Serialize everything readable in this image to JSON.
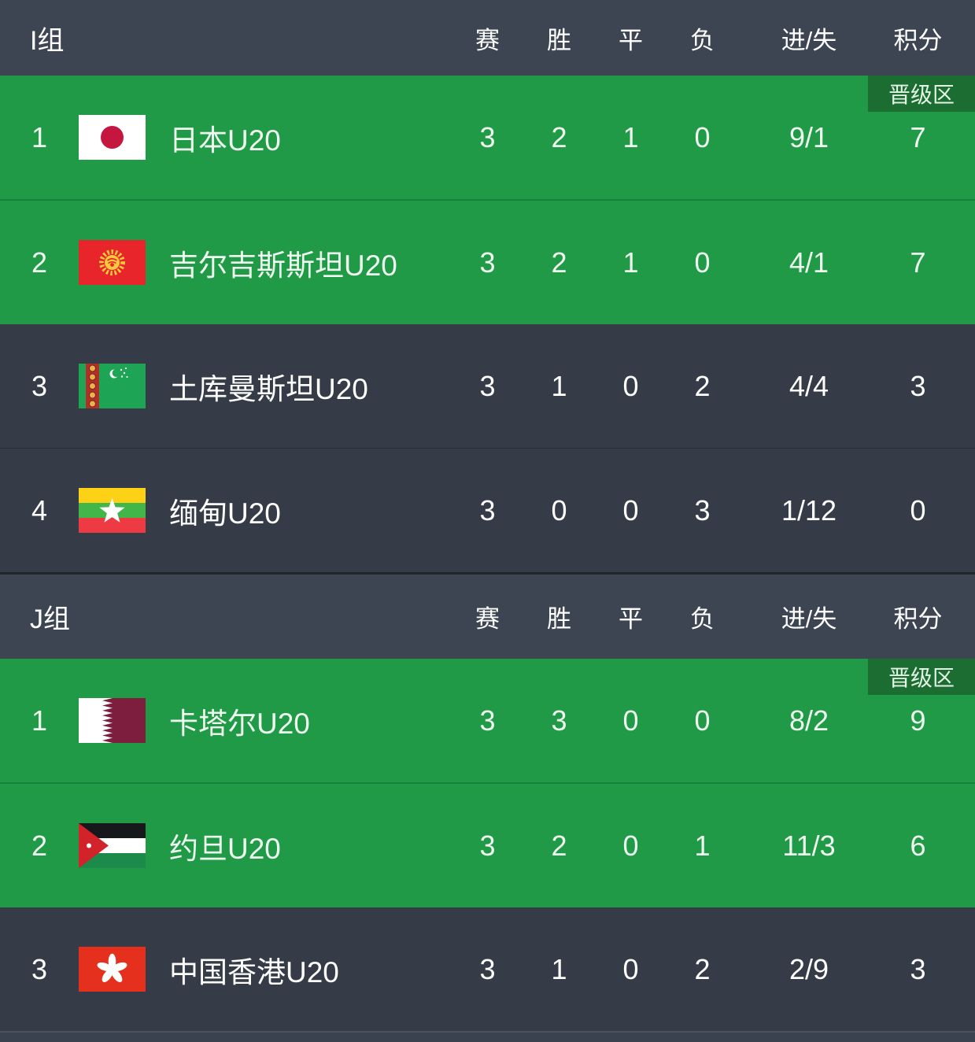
{
  "columns": {
    "played": "赛",
    "won": "胜",
    "draw": "平",
    "lost": "负",
    "goals": "进/失",
    "points": "积分"
  },
  "promotion_badge": "晋级区",
  "groups": [
    {
      "name": "I组",
      "rows": [
        {
          "rank": "1",
          "team": "日本U20",
          "flag": "japan",
          "promoted": true,
          "played": "3",
          "won": "2",
          "draw": "1",
          "lost": "0",
          "goals": "9/1",
          "points": "7"
        },
        {
          "rank": "2",
          "team": "吉尔吉斯斯坦U20",
          "flag": "kyrgyzstan",
          "promoted": true,
          "played": "3",
          "won": "2",
          "draw": "1",
          "lost": "0",
          "goals": "4/1",
          "points": "7"
        },
        {
          "rank": "3",
          "team": "土库曼斯坦U20",
          "flag": "turkmenistan",
          "promoted": false,
          "played": "3",
          "won": "1",
          "draw": "0",
          "lost": "2",
          "goals": "4/4",
          "points": "3"
        },
        {
          "rank": "4",
          "team": "缅甸U20",
          "flag": "myanmar",
          "promoted": false,
          "played": "3",
          "won": "0",
          "draw": "0",
          "lost": "3",
          "goals": "1/12",
          "points": "0"
        }
      ]
    },
    {
      "name": "J组",
      "rows": [
        {
          "rank": "1",
          "team": "卡塔尔U20",
          "flag": "qatar",
          "promoted": true,
          "played": "3",
          "won": "3",
          "draw": "0",
          "lost": "0",
          "goals": "8/2",
          "points": "9"
        },
        {
          "rank": "2",
          "team": "约旦U20",
          "flag": "jordan",
          "promoted": true,
          "played": "3",
          "won": "2",
          "draw": "0",
          "lost": "1",
          "goals": "11/3",
          "points": "6"
        },
        {
          "rank": "3",
          "team": "中国香港U20",
          "flag": "hongkong",
          "promoted": false,
          "played": "3",
          "won": "1",
          "draw": "0",
          "lost": "2",
          "goals": "2/9",
          "points": "3"
        }
      ]
    }
  ],
  "colors": {
    "header-bg": "#3d4553",
    "row-dark-bg": "#353c48",
    "row-green-bg": "#209a46",
    "green-divider": "#178039",
    "dark-divider": "#272e39",
    "badge-bg": "#1c6d31",
    "badge-text": "#e4f4e6",
    "text-light": "#ffffff",
    "text-green-row": "#eefaf0",
    "section-divider": "#20262e",
    "bottom-strip-bg": "#3a424f",
    "bottom-strip-line": "#4a5360"
  }
}
